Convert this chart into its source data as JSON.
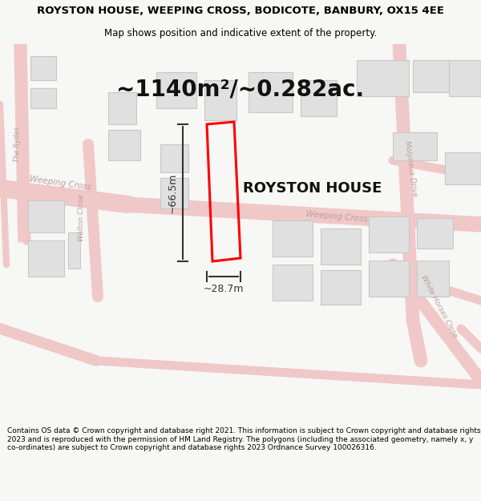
{
  "title": "ROYSTON HOUSE, WEEPING CROSS, BODICOTE, BANBURY, OX15 4EE",
  "subtitle": "Map shows position and indicative extent of the property.",
  "area_text": "~1140m²/~0.282ac.",
  "property_label": "ROYSTON HOUSE",
  "dim_width": "~28.7m",
  "dim_height": "~66.5m",
  "footer": "Contains OS data © Crown copyright and database right 2021. This information is subject to Crown copyright and database rights 2023 and is reproduced with the permission of HM Land Registry. The polygons (including the associated geometry, namely x, y co-ordinates) are subject to Crown copyright and database rights 2023 Ordnance Survey 100026316.",
  "bg_color": "#f7f7f5",
  "map_bg": "#ffffff",
  "road_color": "#f0c8c8",
  "road_line_color": "#e09090",
  "road_text_color": "#b8a0a0",
  "building_color": "#e0e0e0",
  "building_edge_color": "#c8c8c8",
  "property_outline_color": "#ff0000",
  "dim_color": "#333333",
  "title_color": "#000000",
  "footer_color": "#000000",
  "title_fontsize": 9.5,
  "subtitle_fontsize": 8.5,
  "area_fontsize": 20,
  "label_fontsize": 13,
  "dim_fontsize": 9,
  "footer_fontsize": 6.5,
  "road_label_fontsize": 7.5
}
